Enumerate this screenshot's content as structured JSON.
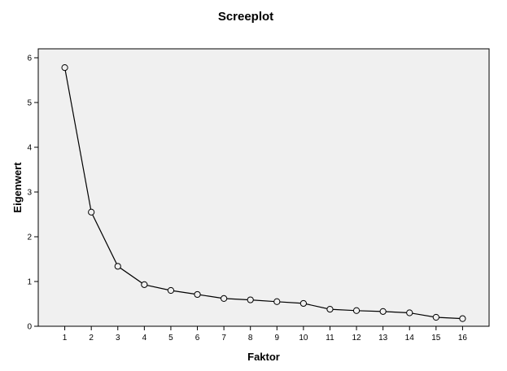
{
  "chart_data": {
    "type": "line",
    "title": "Screeplot",
    "xlabel": "Faktor",
    "ylabel": "Eigenwert",
    "x": [
      1,
      2,
      3,
      4,
      5,
      6,
      7,
      8,
      9,
      10,
      11,
      12,
      13,
      14,
      15,
      16
    ],
    "series": [
      {
        "values": [
          5.78,
          2.55,
          1.34,
          0.93,
          0.8,
          0.71,
          0.62,
          0.59,
          0.55,
          0.51,
          0.38,
          0.35,
          0.33,
          0.3,
          0.2,
          0.17
        ]
      }
    ],
    "xlim": [
      0,
      17
    ],
    "ylim": [
      0,
      6.2
    ],
    "yticks": [
      0,
      1,
      2,
      3,
      4,
      5,
      6
    ],
    "grid": false,
    "marker": "hollow-circle",
    "colors": {
      "plot_background": "#f0f0f0",
      "line": "#000000",
      "frame": "#000000"
    }
  }
}
